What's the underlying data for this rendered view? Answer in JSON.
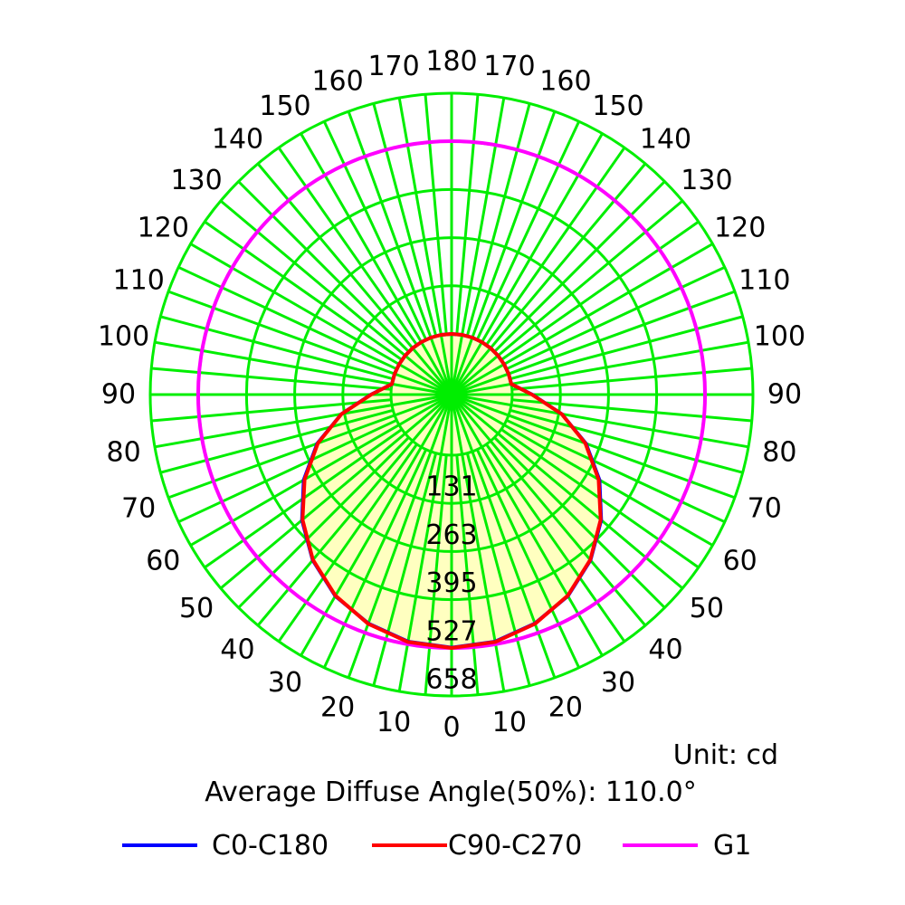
{
  "chart_data": {
    "type": "polar",
    "unit_label": "Unit: cd",
    "subtitle": "Average Diffuse Angle(50%): 110.0°",
    "angle_labels_left": [
      "0",
      "10",
      "20",
      "30",
      "40",
      "50",
      "60",
      "70",
      "80",
      "90",
      "100",
      "110",
      "120",
      "130",
      "140",
      "150",
      "160",
      "170",
      "180"
    ],
    "angle_labels_right": [
      "10",
      "20",
      "30",
      "40",
      "50",
      "60",
      "70",
      "80",
      "90",
      "100",
      "110",
      "120",
      "130",
      "140",
      "150",
      "160",
      "170"
    ],
    "ring_labels": [
      "131",
      "263",
      "395",
      "527",
      "658"
    ],
    "rmax": 658,
    "series": [
      {
        "name": "C0-C180",
        "color": "#0000ff",
        "angles": [
          0,
          10,
          20,
          30,
          40,
          50,
          60,
          70,
          80,
          90,
          100,
          110,
          120,
          130,
          140,
          150,
          160,
          170,
          180
        ],
        "values": [
          526,
          520,
          500,
          470,
          425,
          368,
          301,
          225,
          140,
          55,
          0,
          0,
          0,
          0,
          0,
          0,
          0,
          0,
          0
        ]
      },
      {
        "name": "C90-C270",
        "color": "#ff0000",
        "angles": [
          0,
          10,
          20,
          30,
          40,
          50,
          60,
          70,
          80,
          90,
          100,
          110,
          120,
          130,
          140,
          150,
          160,
          170,
          180
        ],
        "values": [
          527,
          521,
          501,
          469,
          424,
          366,
          298,
          223,
          140,
          54,
          0,
          0,
          0,
          0,
          0,
          0,
          0,
          0,
          0
        ]
      }
    ],
    "reference": {
      "name": "G1",
      "color": "#ff00ff",
      "value": 527
    },
    "grid_color": "#00ee00",
    "fill_color": "#ffffc0",
    "legend_position": "bottom"
  }
}
